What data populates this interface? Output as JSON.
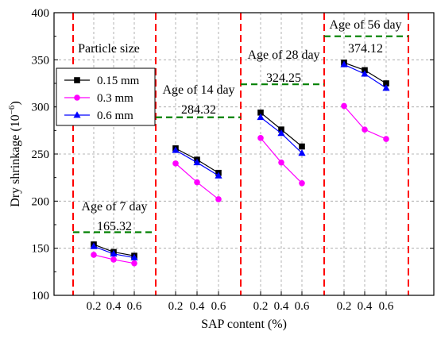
{
  "chart_data": {
    "type": "line",
    "ylabel": "Dry shrinkage (10",
    "ylabel_sup": "−6",
    "ylabel_close": ")",
    "xlabel": "SAP content (%)",
    "ylim": [
      100,
      400
    ],
    "yticks": [
      100,
      150,
      200,
      250,
      300,
      350,
      400
    ],
    "grid": true,
    "legend_position": "left",
    "legend_title": "Particle size",
    "groups": [
      {
        "id": "7d",
        "tick_labels": [
          "0.2",
          "0.4",
          "0.6"
        ],
        "age_label": "Age of 7 day",
        "reference_value": "165.32",
        "reference_level": 167,
        "series_values": [
          [
            154,
            146,
            142
          ],
          [
            143,
            138,
            134
          ],
          [
            152,
            144,
            140
          ]
        ]
      },
      {
        "id": "14d",
        "tick_labels": [
          "0.2",
          "0.4",
          "0.6"
        ],
        "age_label": "Age of 14 day",
        "reference_value": "284.32",
        "reference_level": 289,
        "series_values": [
          [
            256,
            244,
            230
          ],
          [
            240,
            220,
            202
          ],
          [
            254,
            241,
            227
          ]
        ]
      },
      {
        "id": "28d",
        "tick_labels": [
          "0.2",
          "0.4",
          "0.6"
        ],
        "age_label": "Age of 28 day",
        "reference_value": "324.25",
        "reference_level": 324,
        "series_values": [
          [
            294,
            276,
            258
          ],
          [
            267,
            241,
            219
          ],
          [
            289,
            272,
            251
          ]
        ]
      },
      {
        "id": "56d",
        "tick_labels": [
          "0.2",
          "0.4",
          "0.6"
        ],
        "age_label": "Age of 56 day",
        "reference_value": "374.12",
        "reference_level": 375,
        "series_values": [
          [
            347,
            339,
            325
          ],
          [
            301,
            276,
            266
          ],
          [
            345,
            335,
            320
          ]
        ]
      }
    ],
    "series": [
      {
        "name": "0.15 mm",
        "color": "#000000",
        "marker": "square"
      },
      {
        "name": "0.3 mm",
        "color": "#ff00ff",
        "marker": "circle"
      },
      {
        "name": "0.6 mm",
        "color": "#0000ff",
        "marker": "triangle"
      }
    ],
    "colors": {
      "divider": "#ff0000",
      "reference_line": "#008000",
      "grid": "#a0a0a0"
    }
  }
}
